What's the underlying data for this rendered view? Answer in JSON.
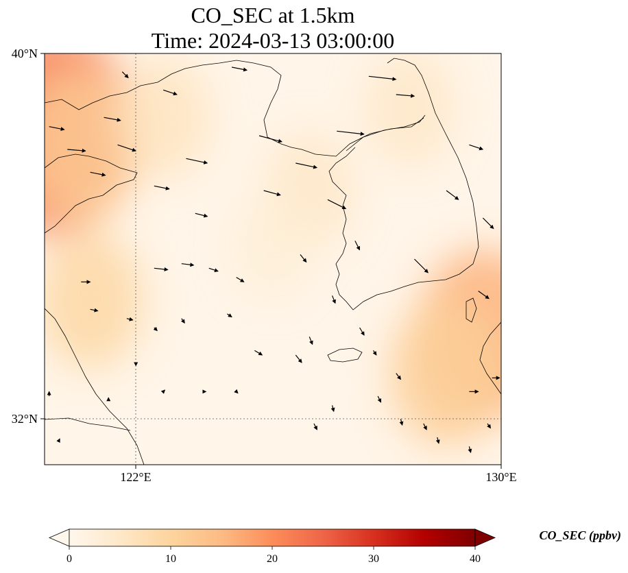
{
  "title": {
    "line1": "CO_SEC at 1.5km",
    "line2": "Time: 2024-03-13 03:00:00"
  },
  "axes": {
    "lat_ticks": [
      "40°N",
      "32°N"
    ],
    "lon_ticks": [
      "122°E",
      "130°E"
    ],
    "lat_range": [
      31.0,
      40.0
    ],
    "lon_range": [
      120.0,
      130.0
    ],
    "gridlines": [
      {
        "kind": "meridian",
        "value": 122
      },
      {
        "kind": "parallel",
        "value": 32
      }
    ]
  },
  "colorbar": {
    "label": "CO_SEC (ppbv)",
    "ticks": [
      "0",
      "10",
      "20",
      "30",
      "40"
    ],
    "range": [
      0,
      40
    ],
    "extend": "both",
    "colormap": "OrRd",
    "colors": [
      "#fff7ec",
      "#fee8c8",
      "#fdd49e",
      "#fdbb84",
      "#fc8d59",
      "#ef6548",
      "#d7301f",
      "#b30000",
      "#7f0000"
    ]
  },
  "map": {
    "field_name": "CO_SEC",
    "units": "ppbv",
    "level": "1.5km",
    "features": [
      "coastlines",
      "wind-vectors"
    ],
    "plumes": [
      {
        "lon": 120.2,
        "lat": 38.3,
        "value": 22
      },
      {
        "lon": 120.8,
        "lat": 38.0,
        "value": 12
      },
      {
        "lon": 121.0,
        "lat": 34.6,
        "value": 9
      },
      {
        "lon": 122.6,
        "lat": 38.6,
        "value": 6
      },
      {
        "lon": 125.8,
        "lat": 37.0,
        "value": 5
      },
      {
        "lon": 129.6,
        "lat": 33.8,
        "value": 16
      },
      {
        "lon": 128.8,
        "lat": 33.0,
        "value": 11
      },
      {
        "lon": 128.0,
        "lat": 38.8,
        "value": 5
      },
      {
        "lon": 125.0,
        "lat": 35.8,
        "value": 3
      }
    ],
    "wind_vectors": [
      {
        "lon": 120.1,
        "lat": 38.4,
        "u": 1.0,
        "v": -0.2
      },
      {
        "lon": 120.5,
        "lat": 37.9,
        "u": 1.2,
        "v": -0.1
      },
      {
        "lon": 121.0,
        "lat": 37.4,
        "u": 1.0,
        "v": -0.2
      },
      {
        "lon": 121.3,
        "lat": 38.6,
        "u": 1.1,
        "v": -0.2
      },
      {
        "lon": 121.6,
        "lat": 38.0,
        "u": 1.2,
        "v": -0.4
      },
      {
        "lon": 121.7,
        "lat": 39.6,
        "u": 0.4,
        "v": -0.4
      },
      {
        "lon": 122.4,
        "lat": 37.1,
        "u": 1.0,
        "v": -0.2
      },
      {
        "lon": 122.6,
        "lat": 39.2,
        "u": 0.9,
        "v": -0.3
      },
      {
        "lon": 123.1,
        "lat": 37.7,
        "u": 1.4,
        "v": -0.3
      },
      {
        "lon": 123.3,
        "lat": 36.5,
        "u": 0.8,
        "v": -0.2
      },
      {
        "lon": 124.1,
        "lat": 39.7,
        "u": 1.0,
        "v": -0.2
      },
      {
        "lon": 124.7,
        "lat": 38.2,
        "u": 1.5,
        "v": -0.4
      },
      {
        "lon": 124.8,
        "lat": 37.0,
        "u": 1.1,
        "v": -0.3
      },
      {
        "lon": 125.5,
        "lat": 37.6,
        "u": 1.4,
        "v": -0.3
      },
      {
        "lon": 126.2,
        "lat": 36.8,
        "u": 1.2,
        "v": -0.6
      },
      {
        "lon": 126.4,
        "lat": 38.3,
        "u": 1.8,
        "v": -0.2
      },
      {
        "lon": 127.1,
        "lat": 39.5,
        "u": 1.8,
        "v": -0.2
      },
      {
        "lon": 127.7,
        "lat": 39.1,
        "u": 1.2,
        "v": -0.1
      },
      {
        "lon": 128.1,
        "lat": 35.5,
        "u": 0.9,
        "v": -0.9
      },
      {
        "lon": 128.8,
        "lat": 37.0,
        "u": 0.8,
        "v": -0.6
      },
      {
        "lon": 129.3,
        "lat": 38.0,
        "u": 0.9,
        "v": -0.3
      },
      {
        "lon": 129.6,
        "lat": 36.4,
        "u": 0.7,
        "v": -0.7
      },
      {
        "lon": 129.5,
        "lat": 34.8,
        "u": 0.7,
        "v": -0.5
      },
      {
        "lon": 120.8,
        "lat": 35.0,
        "u": 0.6,
        "v": 0.0
      },
      {
        "lon": 121.0,
        "lat": 34.4,
        "u": 0.5,
        "v": -0.1
      },
      {
        "lon": 121.8,
        "lat": 34.2,
        "u": 0.4,
        "v": -0.1
      },
      {
        "lon": 122.4,
        "lat": 35.3,
        "u": 0.9,
        "v": -0.1
      },
      {
        "lon": 123.0,
        "lat": 35.4,
        "u": 0.8,
        "v": -0.1
      },
      {
        "lon": 123.6,
        "lat": 35.3,
        "u": 0.6,
        "v": -0.2
      },
      {
        "lon": 124.2,
        "lat": 35.1,
        "u": 0.5,
        "v": -0.3
      },
      {
        "lon": 123.0,
        "lat": 34.2,
        "u": 0.2,
        "v": -0.3
      },
      {
        "lon": 124.0,
        "lat": 34.3,
        "u": 0.3,
        "v": -0.2
      },
      {
        "lon": 124.6,
        "lat": 33.5,
        "u": 0.5,
        "v": -0.3
      },
      {
        "lon": 125.5,
        "lat": 33.4,
        "u": 0.4,
        "v": -0.5
      },
      {
        "lon": 125.8,
        "lat": 33.8,
        "u": 0.2,
        "v": -0.5
      },
      {
        "lon": 125.6,
        "lat": 35.6,
        "u": 0.4,
        "v": -0.5
      },
      {
        "lon": 126.3,
        "lat": 34.7,
        "u": 0.2,
        "v": -0.5
      },
      {
        "lon": 126.9,
        "lat": 34.0,
        "u": 0.3,
        "v": -0.5
      },
      {
        "lon": 127.2,
        "lat": 33.5,
        "u": 0.2,
        "v": -0.3
      },
      {
        "lon": 127.7,
        "lat": 33.0,
        "u": 0.3,
        "v": -0.4
      },
      {
        "lon": 127.3,
        "lat": 32.5,
        "u": 0.2,
        "v": -0.4
      },
      {
        "lon": 126.3,
        "lat": 32.3,
        "u": 0.1,
        "v": -0.4
      },
      {
        "lon": 125.9,
        "lat": 31.9,
        "u": 0.2,
        "v": -0.4
      },
      {
        "lon": 128.3,
        "lat": 31.9,
        "u": 0.2,
        "v": -0.4
      },
      {
        "lon": 128.6,
        "lat": 31.6,
        "u": 0.1,
        "v": -0.4
      },
      {
        "lon": 129.3,
        "lat": 31.4,
        "u": 0.1,
        "v": -0.4
      },
      {
        "lon": 127.8,
        "lat": 32.0,
        "u": 0.1,
        "v": -0.4
      },
      {
        "lon": 129.3,
        "lat": 32.6,
        "u": 0.6,
        "v": 0.0
      },
      {
        "lon": 129.8,
        "lat": 32.9,
        "u": 0.5,
        "v": 0.0
      },
      {
        "lon": 129.7,
        "lat": 31.9,
        "u": 0.2,
        "v": -0.3
      },
      {
        "lon": 122.6,
        "lat": 32.6,
        "u": 0.1,
        "v": 0.1
      },
      {
        "lon": 121.4,
        "lat": 32.4,
        "u": 0.0,
        "v": 0.2
      },
      {
        "lon": 123.5,
        "lat": 32.6,
        "u": 0.1,
        "v": 0.0
      },
      {
        "lon": 124.2,
        "lat": 32.6,
        "u": 0.1,
        "v": -0.1
      },
      {
        "lon": 120.1,
        "lat": 32.5,
        "u": 0.0,
        "v": 0.3
      },
      {
        "lon": 120.3,
        "lat": 31.5,
        "u": 0.1,
        "v": 0.2
      },
      {
        "lon": 122.4,
        "lat": 34.0,
        "u": 0.2,
        "v": -0.2
      },
      {
        "lon": 122.0,
        "lat": 33.2,
        "u": 0.0,
        "v": -0.1
      },
      {
        "lon": 126.8,
        "lat": 35.9,
        "u": 0.3,
        "v": -0.6
      }
    ]
  }
}
